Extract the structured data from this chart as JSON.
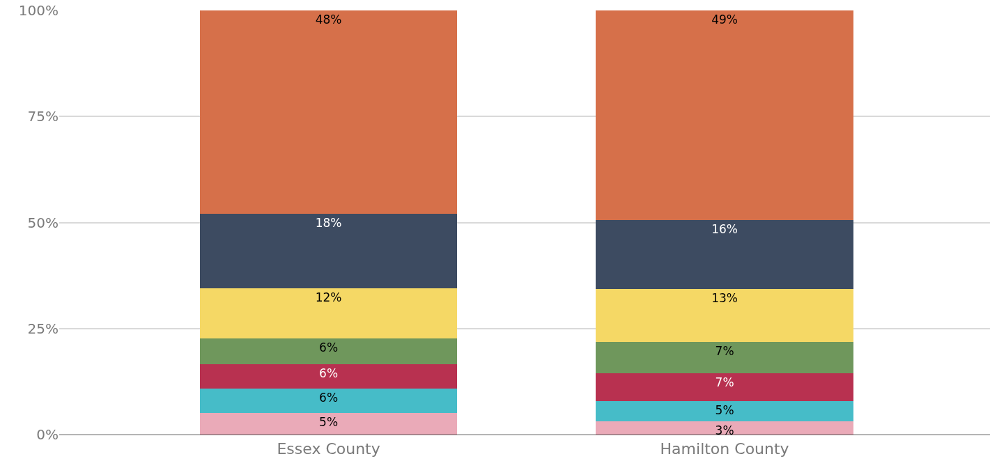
{
  "chart_data": {
    "type": "bar",
    "stacked": true,
    "categories": [
      "Essex County",
      "Hamilton County"
    ],
    "series": [
      {
        "color": "#eaaab8",
        "values": [
          5.1,
          3.1
        ],
        "value_labels": [
          "5%",
          "3%"
        ]
      },
      {
        "color": "#46bcc8",
        "values": [
          5.8,
          4.8
        ],
        "value_labels": [
          "6%",
          "5%"
        ]
      },
      {
        "color": "#b83150",
        "values": [
          5.7,
          6.6
        ],
        "value_labels": [
          "6%",
          "7%"
        ]
      },
      {
        "color": "#6f975c",
        "values": [
          6.0,
          7.4
        ],
        "value_labels": [
          "6%",
          "7%"
        ]
      },
      {
        "color": "#f5d865",
        "values": [
          11.9,
          12.5
        ],
        "value_labels": [
          "12%",
          "13%"
        ]
      },
      {
        "color": "#3d4b61",
        "values": [
          17.6,
          16.2
        ],
        "value_labels": [
          "18%",
          "16%"
        ]
      },
      {
        "color": "#d6704a",
        "values": [
          47.9,
          49.4
        ],
        "value_labels": [
          "48%",
          "49%"
        ]
      }
    ],
    "ylim": [
      0,
      100
    ],
    "yticks": [
      {
        "value": 0,
        "label": "0%"
      },
      {
        "value": 25,
        "label": "25%"
      },
      {
        "value": 50,
        "label": "50%"
      },
      {
        "value": 75,
        "label": "75%"
      },
      {
        "value": 100,
        "label": "100%"
      }
    ],
    "grid": "y"
  }
}
